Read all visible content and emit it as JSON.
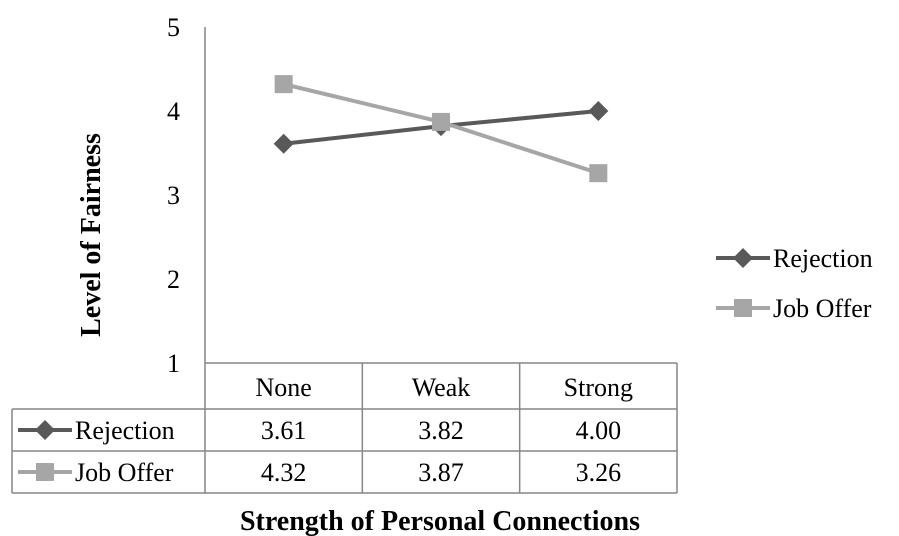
{
  "chart_data": {
    "type": "line",
    "ylabel": "Level of Fairness",
    "xlabel": "Strength of Personal Connections",
    "categories": [
      "None",
      "Weak",
      "Strong"
    ],
    "ylim": [
      1,
      5
    ],
    "yticks": [
      1,
      2,
      3,
      4,
      5
    ],
    "grid": false,
    "legend_position": "right",
    "data_table": true,
    "series": [
      {
        "name": "Rejection",
        "values": [
          3.61,
          3.82,
          4.0
        ],
        "labels": [
          "3.61",
          "3.82",
          "4.00"
        ],
        "color": "#595959",
        "marker": "diamond"
      },
      {
        "name": "Job Offer",
        "values": [
          4.32,
          3.87,
          3.26
        ],
        "labels": [
          "4.32",
          "3.87",
          "3.26"
        ],
        "color": "#a6a6a6",
        "marker": "square"
      }
    ]
  }
}
